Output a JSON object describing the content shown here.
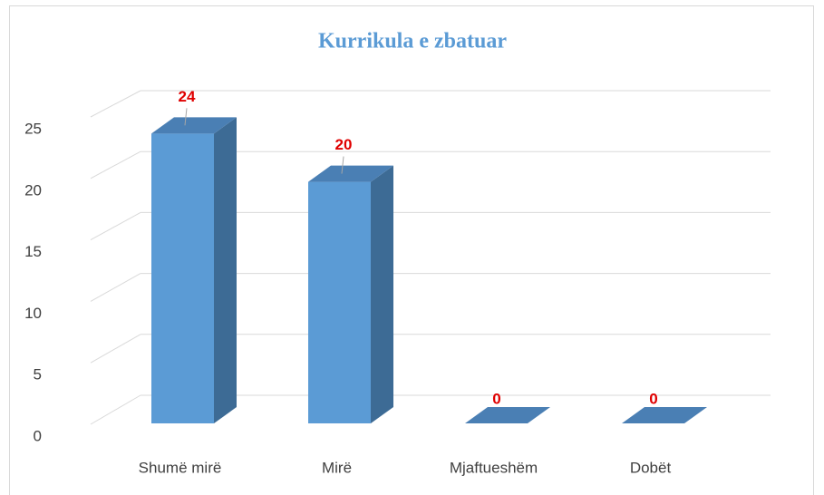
{
  "chart_data": {
    "type": "bar3d",
    "title": "Kurrikula e zbatuar",
    "categories": [
      "Shumë mirë",
      "Mirë",
      "Mjaftueshëm",
      "Dobët"
    ],
    "values": [
      24,
      20,
      0,
      0
    ],
    "color": "#5b9bd5",
    "label_color": "#e00000",
    "ylim": [
      0,
      25
    ],
    "yticks": [
      0,
      5,
      10,
      15,
      20,
      25
    ],
    "grid": true
  }
}
